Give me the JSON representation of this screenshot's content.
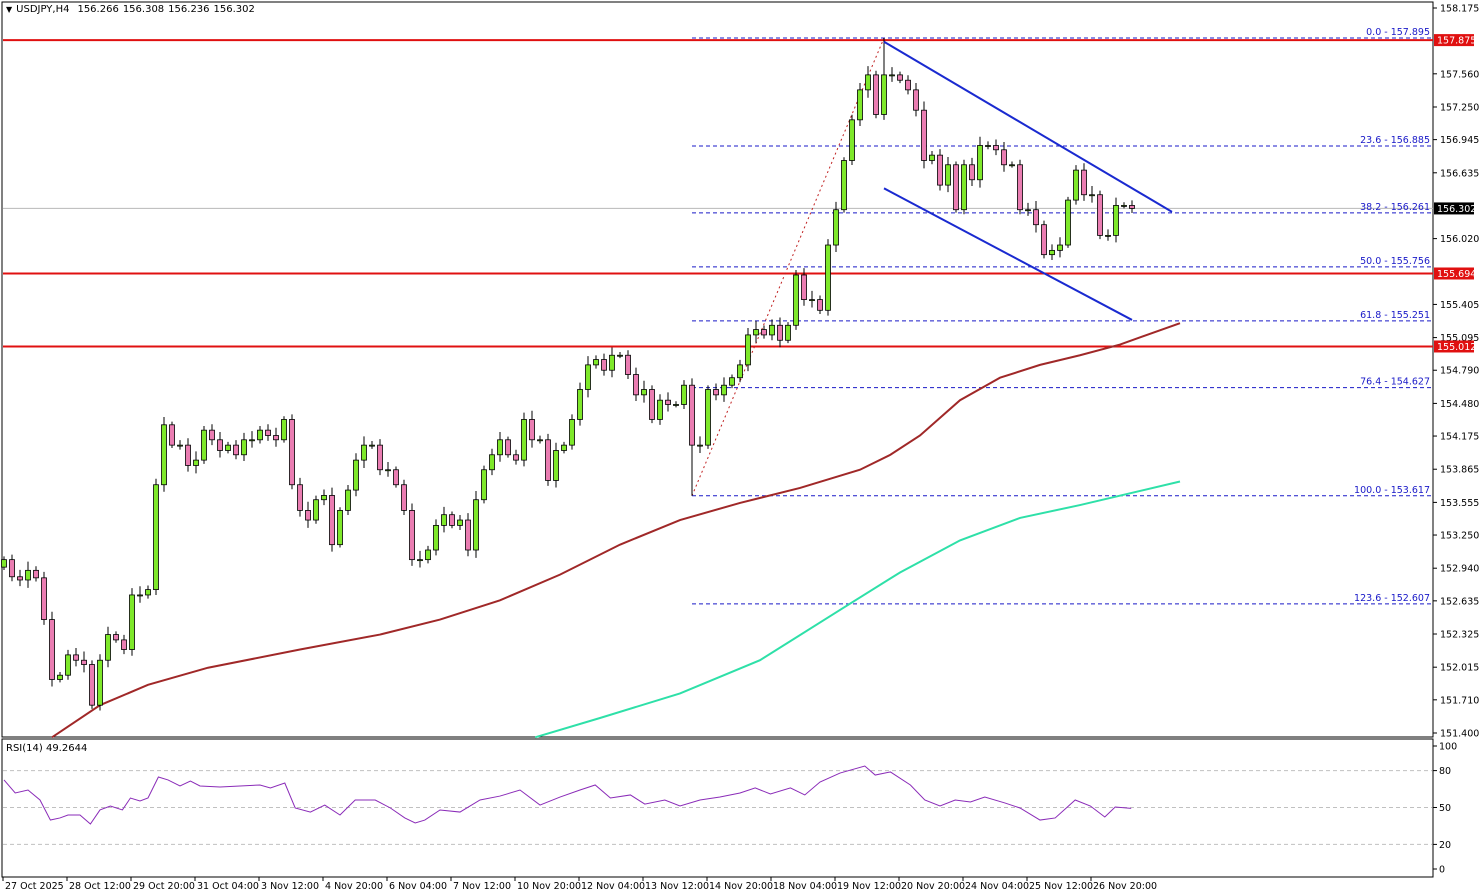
{
  "header": {
    "symbol": "USDJPY,H4",
    "open": "156.266",
    "high": "156.308",
    "low": "156.236",
    "close": "156.302",
    "menu_icon": "triangle-down-icon"
  },
  "rsi_header": {
    "label": "RSI(14) 49.2644"
  },
  "chart_data": {
    "type": "candlestick",
    "title": "USDJPY,H4",
    "ylim": [
      151.4,
      158.175
    ],
    "price_ticks": [
      "158.175",
      "157.875",
      "157.560",
      "157.250",
      "156.945",
      "156.635",
      "156.302",
      "156.020",
      "155.694",
      "155.405",
      "155.095",
      "155.012",
      "154.790",
      "154.480",
      "154.175",
      "153.865",
      "153.555",
      "153.250",
      "152.940",
      "152.635",
      "152.325",
      "152.015",
      "151.710",
      "151.400"
    ],
    "time_labels": [
      {
        "bar": 0,
        "text": "27 Oct 2025"
      },
      {
        "bar": 8,
        "text": "28 Oct 12:00"
      },
      {
        "bar": 16,
        "text": "29 Oct 20:00"
      },
      {
        "bar": 24,
        "text": "31 Oct 04:00"
      },
      {
        "bar": 32,
        "text": "3 Nov 12:00"
      },
      {
        "bar": 40,
        "text": "4 Nov 20:00"
      },
      {
        "bar": 48,
        "text": "6 Nov 04:00"
      },
      {
        "bar": 56,
        "text": "7 Nov 12:00"
      },
      {
        "bar": 64,
        "text": "10 Nov 20:00"
      },
      {
        "bar": 72,
        "text": "12 Nov 04:00"
      },
      {
        "bar": 80,
        "text": "13 Nov 12:00"
      },
      {
        "bar": 88,
        "text": "14 Nov 20:00"
      },
      {
        "bar": 96,
        "text": "18 Nov 04:00"
      },
      {
        "bar": 104,
        "text": "19 Nov 12:00"
      },
      {
        "bar": 112,
        "text": "20 Nov 20:00"
      },
      {
        "bar": 120,
        "text": "24 Nov 04:00"
      },
      {
        "bar": 128,
        "text": "25 Nov 12:00"
      },
      {
        "bar": 136,
        "text": "26 Nov 20:00"
      }
    ],
    "first_open": 152.95,
    "closes": [
      153.02,
      152.86,
      152.83,
      152.92,
      152.85,
      152.46,
      151.9,
      151.94,
      152.13,
      152.08,
      152.04,
      151.66,
      152.08,
      152.32,
      152.27,
      152.18,
      152.69,
      152.69,
      152.74,
      153.72,
      154.28,
      154.09,
      154.09,
      153.9,
      153.95,
      154.23,
      154.14,
      154.04,
      154.09,
      154.0,
      154.14,
      154.14,
      154.23,
      154.18,
      154.14,
      154.33,
      153.72,
      153.48,
      153.39,
      153.58,
      153.62,
      153.16,
      153.48,
      153.67,
      153.95,
      154.09,
      154.09,
      153.86,
      153.86,
      153.72,
      153.48,
      153.02,
      153.02,
      153.11,
      153.34,
      153.44,
      153.34,
      153.39,
      153.11,
      153.58,
      153.86,
      154.0,
      154.14,
      154.0,
      153.95,
      154.33,
      154.14,
      154.14,
      153.76,
      154.04,
      154.09,
      154.33,
      154.61,
      154.84,
      154.89,
      154.79,
      154.93,
      154.93,
      154.75,
      154.56,
      154.61,
      154.33,
      154.51,
      154.47,
      154.47,
      154.65,
      154.09,
      154.09,
      154.61,
      154.56,
      154.65,
      154.72,
      154.84,
      155.12,
      155.17,
      155.12,
      155.21,
      155.07,
      155.21,
      155.68,
      155.45,
      155.45,
      155.35,
      155.96,
      156.29,
      156.75,
      157.13,
      157.41,
      157.55,
      157.18,
      157.55,
      157.55,
      157.5,
      157.41,
      157.22,
      156.75,
      156.8,
      156.52,
      156.71,
      156.29,
      156.71,
      156.57,
      156.89,
      156.89,
      156.85,
      156.71,
      156.71,
      156.29,
      156.29,
      156.15,
      155.87,
      155.91,
      155.96,
      156.38,
      156.66,
      156.43,
      156.43,
      156.05,
      156.05,
      156.33,
      156.33,
      156.302
    ],
    "extremes": {
      "high": {
        "bar": 110,
        "price": 157.895
      },
      "low": {
        "bar": 86,
        "price": 153.617
      }
    },
    "current_price": "156.302",
    "colors": {
      "bull": "#7ee82a",
      "bear": "#ea7db2",
      "ma_slow": "#a02828",
      "ma_fast": "#2ee0a8",
      "support": "#e01010",
      "fib": "#1a1ac8",
      "channel": "#1a2ad0",
      "rsi": "#8a2bb8"
    },
    "horizontal_levels": [
      {
        "price": 157.875,
        "label": "157.875"
      },
      {
        "price": 155.694,
        "label": "155.694"
      },
      {
        "price": 155.012,
        "label": "155.012"
      }
    ],
    "fibonacci": {
      "start_bar": 86,
      "end_bar": 110,
      "levels": [
        {
          "label": "0.0 - 157.895",
          "price": 157.895
        },
        {
          "label": "23.6 - 156.885",
          "price": 156.885
        },
        {
          "label": "38.2 - 156.261",
          "price": 156.261
        },
        {
          "label": "50.0 - 155.756",
          "price": 155.756
        },
        {
          "label": "61.8 - 155.251",
          "price": 155.251
        },
        {
          "label": "76.4 - 154.627",
          "price": 154.627
        },
        {
          "label": "100.0 - 153.617",
          "price": 153.617
        },
        {
          "label": "123.6 - 152.607",
          "price": 152.607
        }
      ]
    },
    "channel": {
      "upper": [
        [
          110,
          157.86
        ],
        [
          146,
          156.27
        ]
      ],
      "lower": [
        [
          110,
          156.49
        ],
        [
          141,
          155.26
        ]
      ]
    },
    "ma_slow": [
      [
        6,
        151.36
      ],
      [
        12,
        151.66
      ],
      [
        18,
        151.85
      ],
      [
        25.5,
        152.01
      ],
      [
        37,
        152.18
      ],
      [
        47,
        152.32
      ],
      [
        54.5,
        152.46
      ],
      [
        62,
        152.64
      ],
      [
        69.5,
        152.88
      ],
      [
        77,
        153.16
      ],
      [
        84.5,
        153.39
      ],
      [
        92,
        153.55
      ],
      [
        99.5,
        153.69
      ],
      [
        107,
        153.86
      ],
      [
        110.8,
        154.0
      ],
      [
        114.5,
        154.18
      ],
      [
        119.5,
        154.51
      ],
      [
        124.5,
        154.72
      ],
      [
        129.5,
        154.84
      ],
      [
        134.5,
        154.93
      ],
      [
        139.5,
        155.03
      ],
      [
        147,
        155.23
      ]
    ],
    "ma_fast": [
      [
        66.4,
        151.36
      ],
      [
        74.5,
        151.54
      ],
      [
        84.5,
        151.77
      ],
      [
        94.5,
        152.08
      ],
      [
        104.5,
        152.55
      ],
      [
        112,
        152.9
      ],
      [
        119.5,
        153.2
      ],
      [
        127,
        153.41
      ],
      [
        134.5,
        153.53
      ],
      [
        147,
        153.75
      ]
    ],
    "rsi": {
      "label": "RSI(14)",
      "value": "49.2644",
      "levels": [
        "100",
        "80",
        "50",
        "20",
        "0"
      ],
      "points": [
        [
          0,
          72.4
        ],
        [
          1.4,
          61.8
        ],
        [
          3,
          64.2
        ],
        [
          4.5,
          56.1
        ],
        [
          5.8,
          39.8
        ],
        [
          7,
          41.5
        ],
        [
          8,
          43.9
        ],
        [
          9.5,
          43.9
        ],
        [
          10.8,
          36.6
        ],
        [
          12,
          48.0
        ],
        [
          13.3,
          51.2
        ],
        [
          14.8,
          48.0
        ],
        [
          15.8,
          57.7
        ],
        [
          17,
          55.3
        ],
        [
          18,
          57.7
        ],
        [
          19.3,
          74.8
        ],
        [
          20.5,
          72.4
        ],
        [
          22,
          67.5
        ],
        [
          23.3,
          71.5
        ],
        [
          24.5,
          67.5
        ],
        [
          27,
          66.7
        ],
        [
          29.5,
          67.5
        ],
        [
          32,
          68.3
        ],
        [
          33.3,
          65.9
        ],
        [
          35.1,
          69.9
        ],
        [
          36.4,
          49.6
        ],
        [
          38.3,
          46.3
        ],
        [
          40.1,
          52.0
        ],
        [
          42,
          43.9
        ],
        [
          43.9,
          56.1
        ],
        [
          46.4,
          56.1
        ],
        [
          48.3,
          49.6
        ],
        [
          50.1,
          41.5
        ],
        [
          51.4,
          37.4
        ],
        [
          52.6,
          39.8
        ],
        [
          54.5,
          48.0
        ],
        [
          57,
          46.3
        ],
        [
          59.5,
          56.1
        ],
        [
          62,
          59.3
        ],
        [
          64.5,
          64.2
        ],
        [
          67,
          52.0
        ],
        [
          69.5,
          58.5
        ],
        [
          72,
          64.2
        ],
        [
          73.9,
          68.3
        ],
        [
          75.8,
          57.7
        ],
        [
          78.3,
          60.2
        ],
        [
          80.1,
          52.8
        ],
        [
          82.6,
          56.1
        ],
        [
          84.5,
          51.2
        ],
        [
          87,
          56.1
        ],
        [
          89.5,
          58.5
        ],
        [
          92,
          61.8
        ],
        [
          93.9,
          65.9
        ],
        [
          95.8,
          61.0
        ],
        [
          98.3,
          65.9
        ],
        [
          100.1,
          60.2
        ],
        [
          102,
          70.7
        ],
        [
          104.5,
          78.0
        ],
        [
          107.6,
          83.7
        ],
        [
          108.9,
          76.4
        ],
        [
          110.8,
          78.9
        ],
        [
          113.3,
          68.3
        ],
        [
          115.1,
          56.1
        ],
        [
          117,
          51.2
        ],
        [
          118.9,
          56.1
        ],
        [
          120.8,
          54.5
        ],
        [
          122.6,
          58.5
        ],
        [
          125.1,
          53.7
        ],
        [
          127,
          49.6
        ],
        [
          129.5,
          39.8
        ],
        [
          131.4,
          41.5
        ],
        [
          133.9,
          56.1
        ],
        [
          135.8,
          51.2
        ],
        [
          137.6,
          42.3
        ],
        [
          138.9,
          50.4
        ],
        [
          140.9,
          49.3
        ]
      ]
    }
  }
}
